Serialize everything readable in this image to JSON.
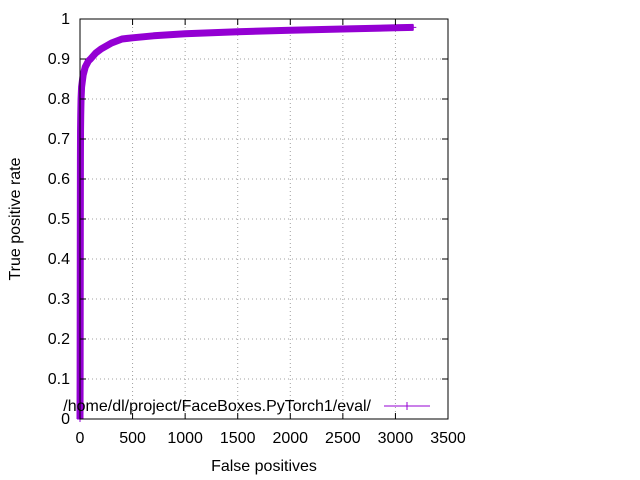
{
  "chart_data": {
    "type": "line",
    "xlabel": "False positives",
    "ylabel": "True positive rate",
    "xlim": [
      0,
      3500
    ],
    "ylim": [
      0,
      1
    ],
    "x_ticks": [
      "0",
      "500",
      "1000",
      "1500",
      "2000",
      "2500",
      "3000",
      "3500"
    ],
    "y_ticks": [
      "0",
      "0.1",
      "0.2",
      "0.3",
      "0.4",
      "0.5",
      "0.6",
      "0.7",
      "0.8",
      "0.9",
      "1"
    ],
    "grid": true,
    "legend_position": "bottom-right",
    "series": [
      {
        "name": "/home/dl/project/FaceBoxes.PyTorch1/eval/",
        "color": "#9400d3",
        "x": [
          0,
          1,
          2,
          3,
          4,
          5,
          7,
          10,
          15,
          20,
          30,
          40,
          50,
          60,
          80,
          100,
          150,
          200,
          300,
          400,
          500,
          700,
          1000,
          1500,
          2000,
          2500,
          3000,
          3170
        ],
        "y": [
          0.0,
          0.1,
          0.3,
          0.5,
          0.65,
          0.72,
          0.76,
          0.8,
          0.83,
          0.84,
          0.86,
          0.87,
          0.88,
          0.885,
          0.895,
          0.9,
          0.915,
          0.925,
          0.94,
          0.95,
          0.953,
          0.958,
          0.963,
          0.968,
          0.972,
          0.975,
          0.978,
          0.979
        ]
      }
    ]
  }
}
